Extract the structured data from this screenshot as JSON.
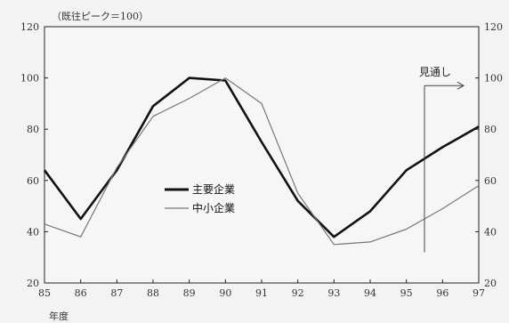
{
  "chart_data": {
    "type": "line",
    "unit_note": "（既往ピーク＝100）",
    "xlabel": "年度",
    "x": [
      "85",
      "86",
      "87",
      "88",
      "89",
      "90",
      "91",
      "92",
      "93",
      "94",
      "95",
      "96",
      "97"
    ],
    "ylim": [
      20,
      120
    ],
    "yticks": [
      20,
      40,
      60,
      80,
      100,
      120
    ],
    "grid": false,
    "legend_position": "center-left",
    "series": [
      {
        "name": "主要企業",
        "color": "#111111",
        "values": [
          64,
          45,
          64,
          89,
          100,
          99,
          75,
          52,
          38,
          48,
          64,
          73,
          81
        ]
      },
      {
        "name": "中小企業",
        "color": "#777777",
        "values": [
          43,
          38,
          65,
          85,
          92,
          100,
          90,
          55,
          35,
          36,
          41,
          49,
          58
        ]
      }
    ],
    "forecast_label": "見通し",
    "forecast_start_x": 95.5
  }
}
